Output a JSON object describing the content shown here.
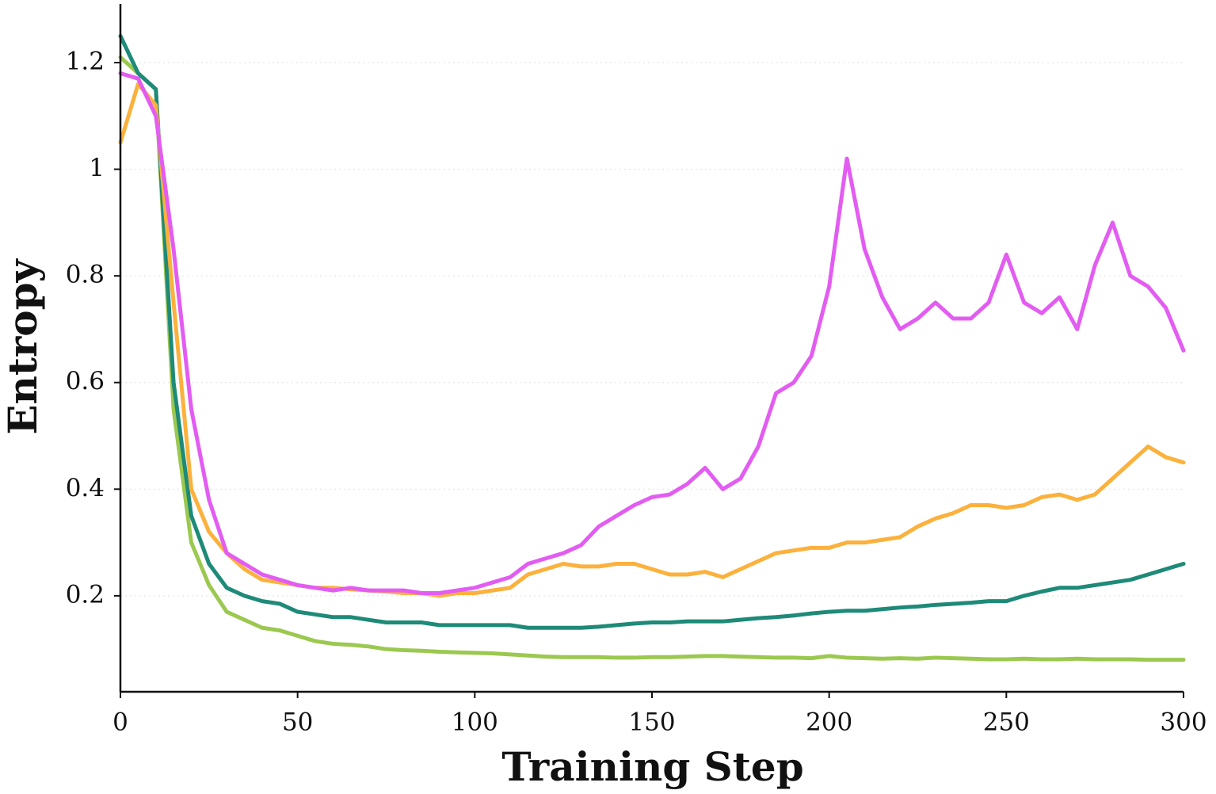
{
  "chart_data": {
    "type": "line",
    "x_label": "Training Step",
    "y_label": "Entropy",
    "xlim": [
      0,
      300
    ],
    "ylim": [
      0.02,
      1.31
    ],
    "xticks": [
      0,
      50,
      100,
      150,
      200,
      250,
      300
    ],
    "yticks": [
      0.2,
      0.4,
      0.6,
      0.8,
      1.0,
      1.2
    ],
    "grid": true,
    "x": [
      0,
      5,
      10,
      15,
      20,
      25,
      30,
      35,
      40,
      45,
      50,
      55,
      60,
      65,
      70,
      75,
      80,
      85,
      90,
      95,
      100,
      105,
      110,
      115,
      120,
      125,
      130,
      135,
      140,
      145,
      150,
      155,
      160,
      165,
      170,
      175,
      180,
      185,
      190,
      195,
      200,
      205,
      210,
      215,
      220,
      225,
      230,
      235,
      240,
      245,
      250,
      255,
      260,
      265,
      270,
      275,
      280,
      285,
      290,
      295,
      300
    ],
    "series": [
      {
        "color": "#9bc84f",
        "values": [
          1.21,
          1.18,
          1.15,
          0.55,
          0.3,
          0.22,
          0.17,
          0.155,
          0.14,
          0.135,
          0.125,
          0.115,
          0.11,
          0.108,
          0.105,
          0.1,
          0.098,
          0.097,
          0.095,
          0.094,
          0.093,
          0.092,
          0.09,
          0.088,
          0.086,
          0.085,
          0.085,
          0.085,
          0.084,
          0.084,
          0.085,
          0.085,
          0.086,
          0.087,
          0.087,
          0.086,
          0.085,
          0.084,
          0.084,
          0.083,
          0.087,
          0.084,
          0.083,
          0.082,
          0.083,
          0.082,
          0.084,
          0.083,
          0.082,
          0.081,
          0.081,
          0.082,
          0.081,
          0.081,
          0.082,
          0.081,
          0.081,
          0.081,
          0.08,
          0.08,
          0.08
        ]
      },
      {
        "color": "#1e8a78",
        "values": [
          1.25,
          1.18,
          1.15,
          0.6,
          0.35,
          0.26,
          0.215,
          0.2,
          0.19,
          0.185,
          0.17,
          0.165,
          0.16,
          0.16,
          0.155,
          0.15,
          0.15,
          0.15,
          0.145,
          0.145,
          0.145,
          0.145,
          0.145,
          0.14,
          0.14,
          0.14,
          0.14,
          0.142,
          0.145,
          0.148,
          0.15,
          0.15,
          0.152,
          0.152,
          0.152,
          0.155,
          0.158,
          0.16,
          0.163,
          0.167,
          0.17,
          0.172,
          0.172,
          0.175,
          0.178,
          0.18,
          0.183,
          0.185,
          0.187,
          0.19,
          0.19,
          0.2,
          0.208,
          0.215,
          0.215,
          0.22,
          0.225,
          0.23,
          0.24,
          0.25,
          0.26
        ]
      },
      {
        "color": "#fbb13c",
        "values": [
          1.05,
          1.16,
          1.12,
          0.75,
          0.4,
          0.32,
          0.28,
          0.25,
          0.23,
          0.225,
          0.22,
          0.215,
          0.215,
          0.212,
          0.21,
          0.208,
          0.205,
          0.205,
          0.2,
          0.205,
          0.205,
          0.21,
          0.215,
          0.24,
          0.25,
          0.26,
          0.255,
          0.255,
          0.26,
          0.26,
          0.25,
          0.24,
          0.24,
          0.245,
          0.235,
          0.25,
          0.265,
          0.28,
          0.285,
          0.29,
          0.29,
          0.3,
          0.3,
          0.305,
          0.31,
          0.33,
          0.345,
          0.355,
          0.37,
          0.37,
          0.365,
          0.37,
          0.385,
          0.39,
          0.38,
          0.39,
          0.42,
          0.45,
          0.48,
          0.46,
          0.45
        ]
      },
      {
        "color": "#e35cf2",
        "values": [
          1.18,
          1.17,
          1.1,
          0.85,
          0.55,
          0.38,
          0.28,
          0.26,
          0.24,
          0.23,
          0.22,
          0.215,
          0.21,
          0.215,
          0.21,
          0.21,
          0.21,
          0.205,
          0.205,
          0.21,
          0.215,
          0.225,
          0.235,
          0.26,
          0.27,
          0.28,
          0.295,
          0.33,
          0.35,
          0.37,
          0.385,
          0.39,
          0.41,
          0.44,
          0.4,
          0.42,
          0.48,
          0.58,
          0.6,
          0.65,
          0.78,
          1.02,
          0.85,
          0.76,
          0.7,
          0.72,
          0.75,
          0.72,
          0.72,
          0.75,
          0.84,
          0.75,
          0.73,
          0.76,
          0.7,
          0.82,
          0.9,
          0.8,
          0.78,
          0.74,
          0.66
        ]
      }
    ]
  }
}
